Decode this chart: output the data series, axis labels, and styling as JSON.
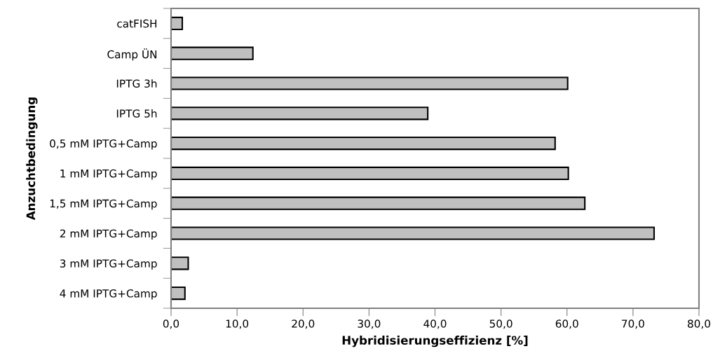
{
  "chart_data": {
    "type": "bar",
    "orientation": "horizontal",
    "categories": [
      "catFISH",
      "Camp ÜN",
      "IPTG 3h",
      "IPTG 5h",
      "0,5 mM IPTG+Camp",
      "1 mM IPTG+Camp",
      "1,5 mM IPTG+Camp",
      "2 mM IPTG+Camp",
      "3 mM IPTG+Camp",
      "4 mM IPTG+Camp"
    ],
    "values": [
      1.7,
      12.4,
      60.1,
      38.9,
      58.2,
      60.2,
      62.7,
      73.2,
      2.6,
      2.1
    ],
    "color": "#c0c0c0",
    "xlabel": "Hybridisierungseffizienz [%]",
    "ylabel": "Anzuchtbedingung",
    "xlim": [
      0,
      80
    ],
    "xticks": [
      {
        "value": 0,
        "label": "0,0"
      },
      {
        "value": 10,
        "label": "10,0"
      },
      {
        "value": 20,
        "label": "20,0"
      },
      {
        "value": 30,
        "label": "30,0"
      },
      {
        "value": 40,
        "label": "40,0"
      },
      {
        "value": 50,
        "label": "50,0"
      },
      {
        "value": 60,
        "label": "60,0"
      },
      {
        "value": 70,
        "label": "70,0"
      },
      {
        "value": 80,
        "label": "80,0"
      }
    ],
    "grid": false,
    "legend": false
  }
}
